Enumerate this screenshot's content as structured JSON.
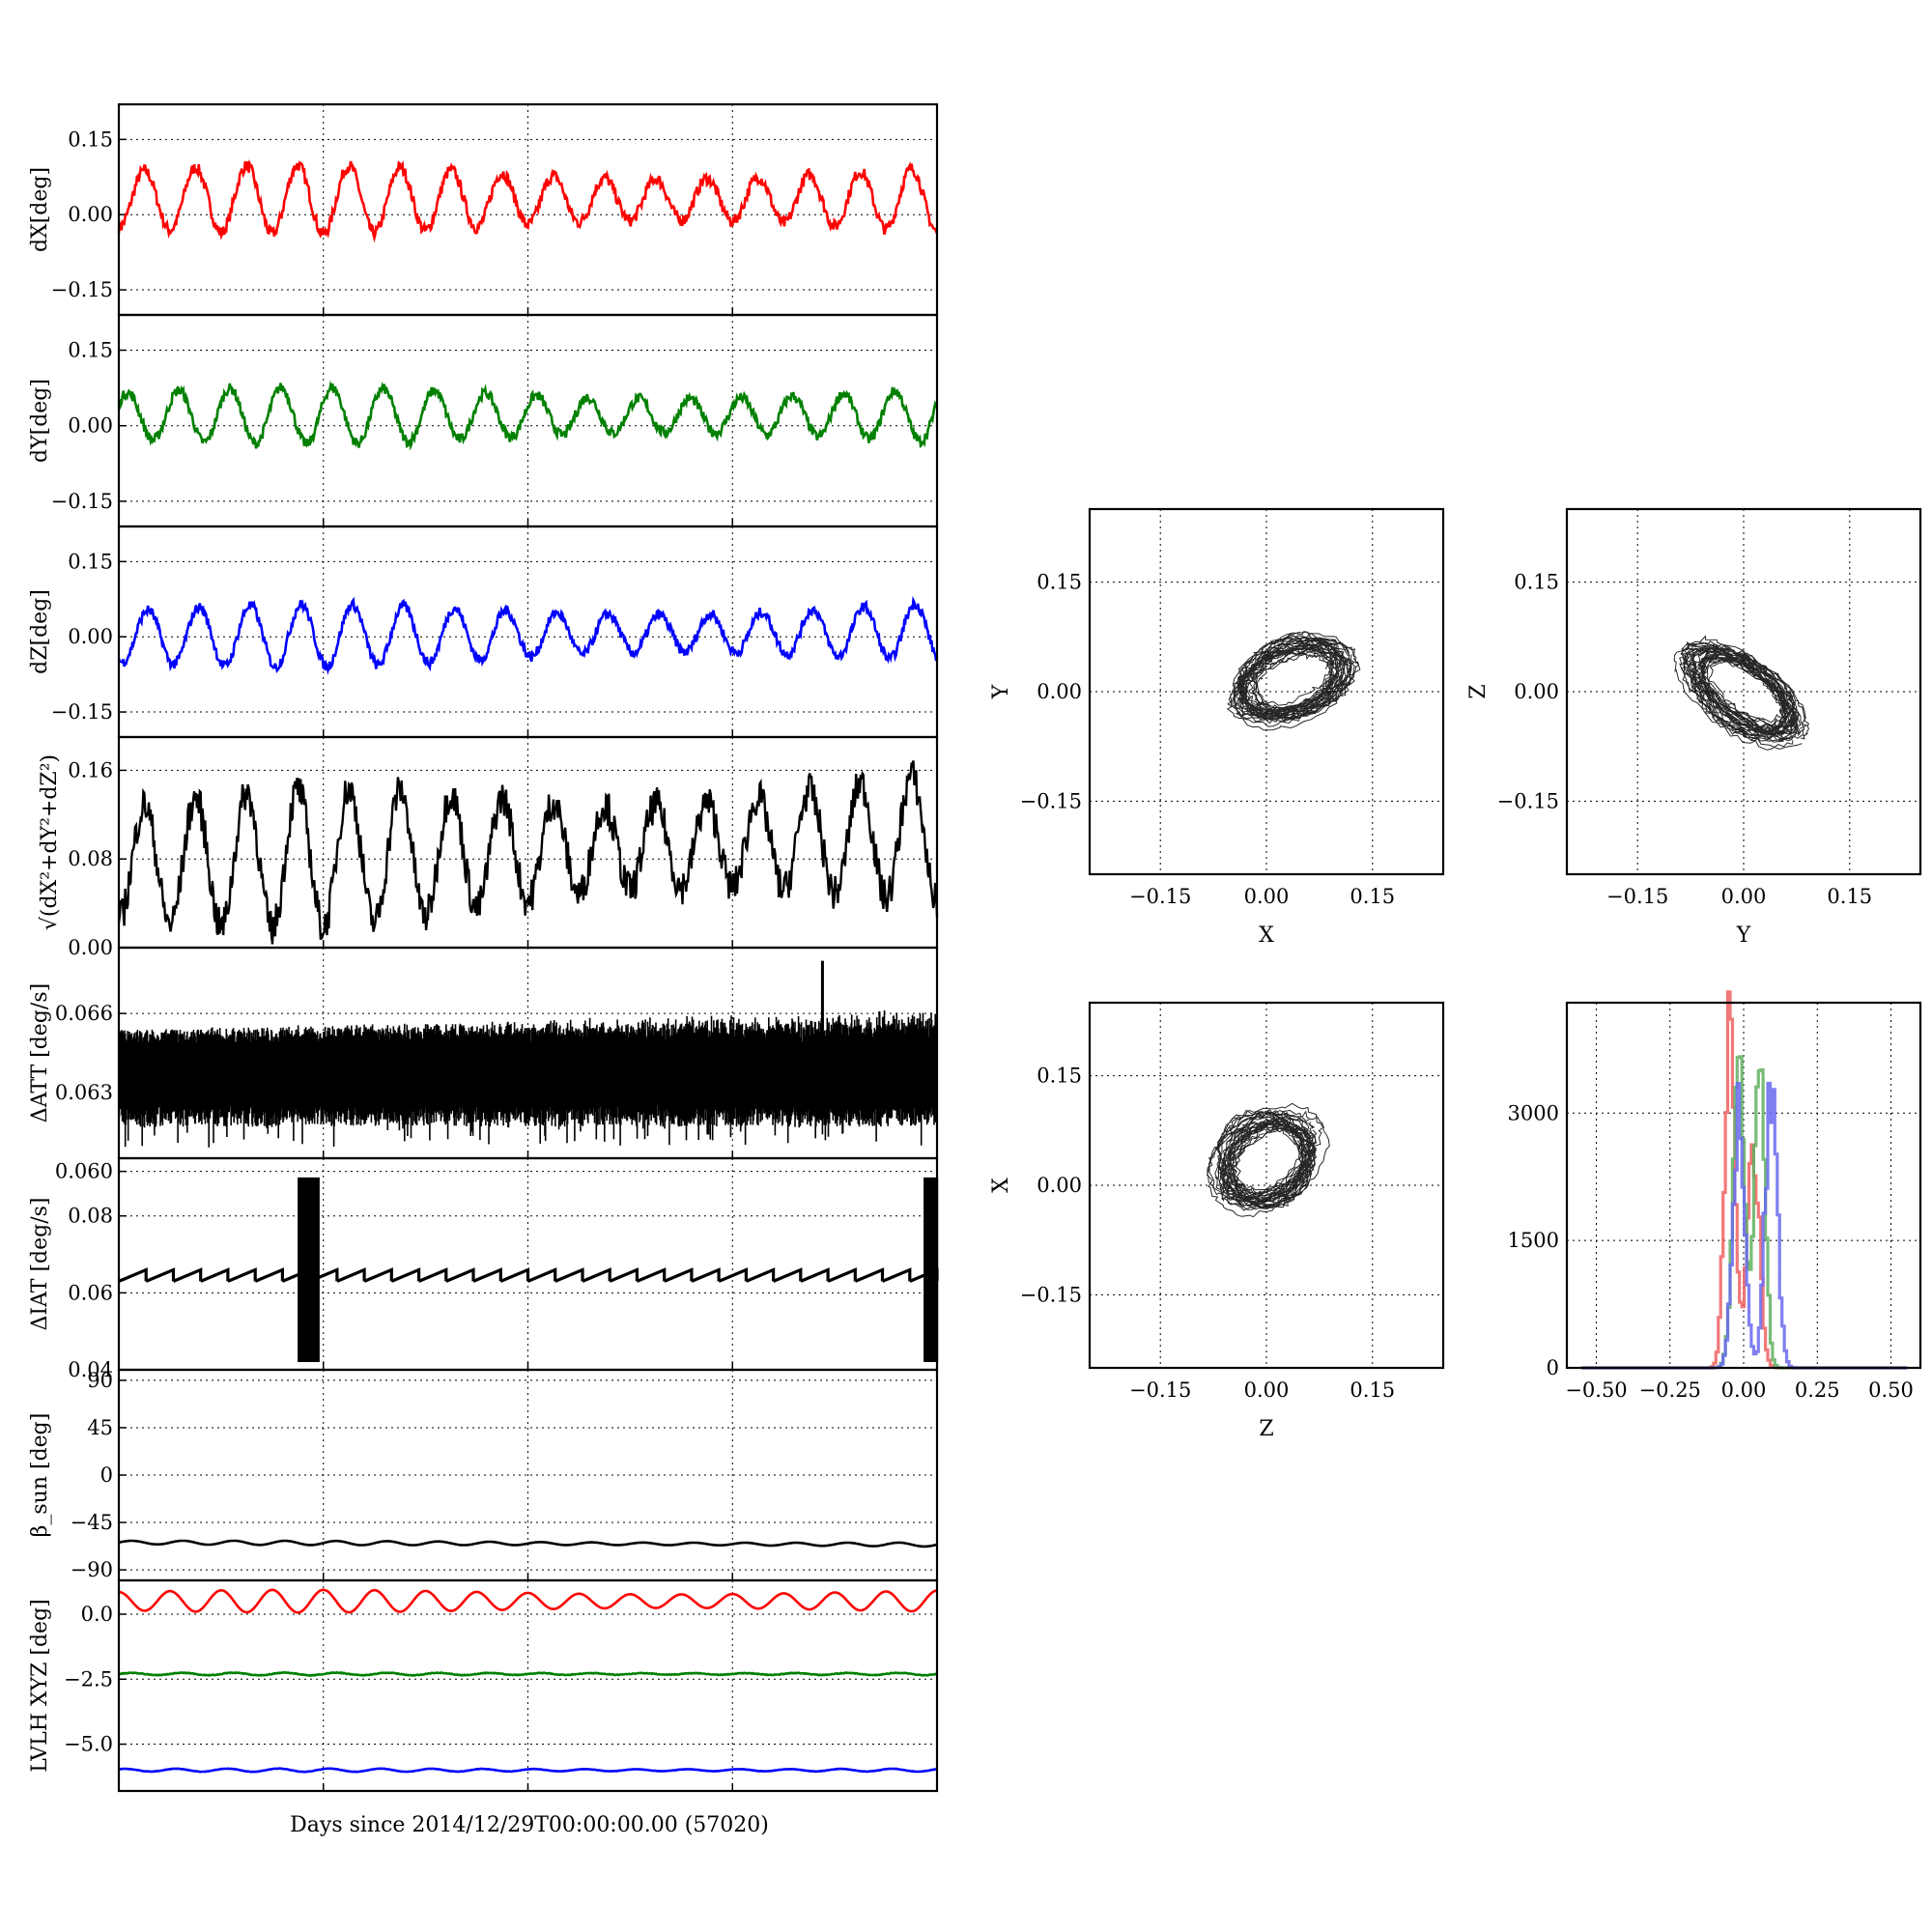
{
  "figure": {
    "xlabel": "Days since 2014/12/29T00:00:00.00 (57020)"
  },
  "colors": {
    "x": "#ff0000",
    "y": "#008000",
    "z": "#0000ff",
    "k": "#000000",
    "hist_x": "#f06060",
    "hist_y": "#60b060",
    "hist_z": "#6868f0"
  },
  "chart_data": [
    {
      "id": "dx",
      "type": "line",
      "ylabel": "dX[deg]",
      "color": "x",
      "xlim": [
        0,
        1
      ],
      "ylim": [
        -0.2,
        0.22
      ],
      "yticks": [
        -0.15,
        0.0,
        0.15
      ],
      "yticklabels": [
        "−0.15",
        "0.00",
        "0.15"
      ],
      "xgrid": [
        0.25,
        0.5,
        0.75
      ],
      "series": [
        {
          "offset": 0.03,
          "amplitude": 0.055,
          "trend": 0.0,
          "cycles": 16,
          "noise": 0.012,
          "phase": -1.57
        }
      ]
    },
    {
      "id": "dy",
      "type": "line",
      "ylabel": "dY[deg]",
      "color": "y",
      "xlim": [
        0,
        1
      ],
      "ylim": [
        -0.2,
        0.22
      ],
      "yticks": [
        -0.15,
        0.0,
        0.15
      ],
      "yticklabels": [
        "−0.15",
        "0.00",
        "0.15"
      ],
      "xgrid": [
        0.25,
        0.5,
        0.75
      ],
      "series": [
        {
          "offset": 0.02,
          "amplitude": 0.045,
          "trend": 0.0,
          "cycles": 16,
          "noise": 0.01,
          "phase": 0.5
        }
      ]
    },
    {
      "id": "dz",
      "type": "line",
      "ylabel": "dZ[deg]",
      "color": "z",
      "xlim": [
        0,
        1
      ],
      "ylim": [
        -0.2,
        0.22
      ],
      "yticks": [
        -0.15,
        0.0,
        0.15
      ],
      "yticklabels": [
        "−0.15",
        "0.00",
        "0.15"
      ],
      "xgrid": [
        0.25,
        0.5,
        0.75
      ],
      "series": [
        {
          "offset": 0.0,
          "amplitude": 0.05,
          "trend": 0.01,
          "cycles": 16,
          "noise": 0.01,
          "phase": -2.0
        }
      ]
    },
    {
      "id": "mag",
      "type": "line",
      "ylabel": "√(dX²+dY²+dZ²)",
      "color": "k",
      "xlim": [
        0,
        1
      ],
      "ylim": [
        0,
        0.19
      ],
      "yticks": [
        0.0,
        0.08,
        0.16
      ],
      "yticklabels": [
        "0.00",
        "0.08",
        "0.16"
      ],
      "xgrid": [
        0.25,
        0.5,
        0.75
      ],
      "series": [
        {
          "offset": 0.075,
          "amplitude": 0.05,
          "trend": 0.025,
          "cycles": 16,
          "noise": 0.016,
          "phase": -1.57
        }
      ]
    },
    {
      "id": "datt",
      "type": "line",
      "ylabel": "ΔATT [deg/s]",
      "color": "k",
      "xlim": [
        0,
        1
      ],
      "ylim": [
        0.0605,
        0.0685
      ],
      "yticks": [
        0.06,
        0.063,
        0.066
      ],
      "yticklabels": [
        "0.060",
        "0.063",
        "0.066"
      ],
      "xgrid": [
        0.25,
        0.5,
        0.75
      ],
      "series": [
        {
          "low": 0.0625,
          "high": 0.0648,
          "spikes": [
            [
              0.86,
              0.068
            ],
            [
              0.72,
              0.0614
            ]
          ]
        }
      ]
    },
    {
      "id": "diat",
      "type": "line",
      "ylabel": "ΔIAT [deg/s]",
      "color": "k",
      "xlim": [
        0,
        1
      ],
      "ylim": [
        0.04,
        0.095
      ],
      "yticks": [
        0.04,
        0.06,
        0.08
      ],
      "yticklabels": [
        "0.04",
        "0.06",
        "0.08"
      ],
      "xgrid": [
        0.25,
        0.5,
        0.75
      ],
      "series": [
        {
          "low": 0.063,
          "high": 0.066,
          "teeth": 30,
          "bursts": [
            [
              0.22,
              0.245
            ],
            [
              0.985,
              1.0
            ]
          ],
          "burst_range": [
            0.042,
            0.09
          ]
        }
      ]
    },
    {
      "id": "beta",
      "type": "line",
      "ylabel": "β_sun [deg]",
      "color": "k",
      "xlim": [
        0,
        1
      ],
      "ylim": [
        -100,
        100
      ],
      "yticks": [
        -90,
        -45,
        0,
        45,
        90
      ],
      "yticklabels": [
        "−90",
        "−45",
        "0",
        "45",
        "90"
      ],
      "xgrid": [
        0.25,
        0.5,
        0.75
      ],
      "series": [
        {
          "offset": -64,
          "amplitude": 1.6,
          "trend": -2,
          "cycles": 16,
          "noise": 0.0,
          "phase": 0
        }
      ]
    },
    {
      "id": "lvlh",
      "type": "line",
      "ylabel": "LVLH XYZ [deg]",
      "color": "k",
      "xlim": [
        0,
        1
      ],
      "ylim": [
        -6.8,
        1.3
      ],
      "yticks": [
        -5.0,
        -2.5,
        0.0
      ],
      "yticklabels": [
        "−5.0",
        "−2.5",
        "0.0"
      ],
      "xgrid": [
        0.25,
        0.5,
        0.75
      ],
      "series": [
        {
          "name": "X",
          "color": "x",
          "offset": 0.5,
          "amplitude": 0.35,
          "trend": 0,
          "cycles": 16,
          "noise": 0.0,
          "phase": 1.57
        },
        {
          "name": "Y",
          "color": "y",
          "offset": -2.3,
          "amplitude": 0.04,
          "trend": 0,
          "cycles": 16,
          "noise": 0.012,
          "phase": 0
        },
        {
          "name": "Z",
          "color": "z",
          "offset": -6.0,
          "amplitude": 0.05,
          "trend": 0,
          "cycles": 16,
          "noise": 0.006,
          "phase": 0.8
        }
      ]
    },
    {
      "id": "xy",
      "type": "scatter",
      "xlabel": "X",
      "ylabel": "Y",
      "xlim": [
        -0.25,
        0.25
      ],
      "ylim": [
        -0.25,
        0.25
      ],
      "ticks": [
        -0.15,
        0.0,
        0.15
      ],
      "ticklabels": [
        "−0.15",
        "0.00",
        "0.15"
      ],
      "series": [
        {
          "cx": 0.035,
          "cy": 0.015,
          "a": 0.075,
          "b": 0.045,
          "angle": 0.35,
          "color": "k"
        }
      ]
    },
    {
      "id": "yz",
      "type": "scatter",
      "xlabel": "Y",
      "ylabel": "Z",
      "xlim": [
        -0.25,
        0.25
      ],
      "ylim": [
        -0.25,
        0.25
      ],
      "ticks": [
        -0.15,
        0.0,
        0.15
      ],
      "ticklabels": [
        "−0.15",
        "0.00",
        "0.15"
      ],
      "series": [
        {
          "cx": 0.0,
          "cy": 0.0,
          "a": 0.085,
          "b": 0.04,
          "angle": -0.62,
          "color": "k"
        }
      ]
    },
    {
      "id": "zx",
      "type": "scatter",
      "xlabel": "Z",
      "ylabel": "X",
      "xlim": [
        -0.25,
        0.25
      ],
      "ylim": [
        -0.25,
        0.25
      ],
      "ticks": [
        -0.15,
        0.0,
        0.15
      ],
      "ticklabels": [
        "−0.15",
        "0.00",
        "0.15"
      ],
      "series": [
        {
          "cx": 0.0,
          "cy": 0.035,
          "a": 0.07,
          "b": 0.055,
          "angle": 0.6,
          "color": "k"
        }
      ]
    },
    {
      "id": "hist",
      "type": "bar",
      "xlim": [
        -0.6,
        0.6
      ],
      "ylim": [
        0,
        4300
      ],
      "xticks": [
        -0.5,
        -0.25,
        0.0,
        0.25,
        0.5
      ],
      "xticklabels": [
        "−0.50",
        "−0.25",
        "0.00",
        "0.25",
        "0.50"
      ],
      "yticks": [
        0,
        1500,
        3000
      ],
      "yticklabels": [
        "0",
        "1500",
        "3000"
      ],
      "series": [
        {
          "name": "X",
          "color": "hist_x",
          "modes": [
            [
              -0.05,
              0.018,
              4000
            ],
            [
              0.03,
              0.02,
              2600
            ]
          ]
        },
        {
          "name": "Y",
          "color": "hist_y",
          "modes": [
            [
              -0.02,
              0.02,
              3400
            ],
            [
              0.05,
              0.018,
              3700
            ]
          ]
        },
        {
          "name": "Z",
          "color": "hist_z",
          "modes": [
            [
              -0.02,
              0.02,
              3000
            ],
            [
              0.09,
              0.02,
              3300
            ]
          ]
        }
      ]
    }
  ]
}
